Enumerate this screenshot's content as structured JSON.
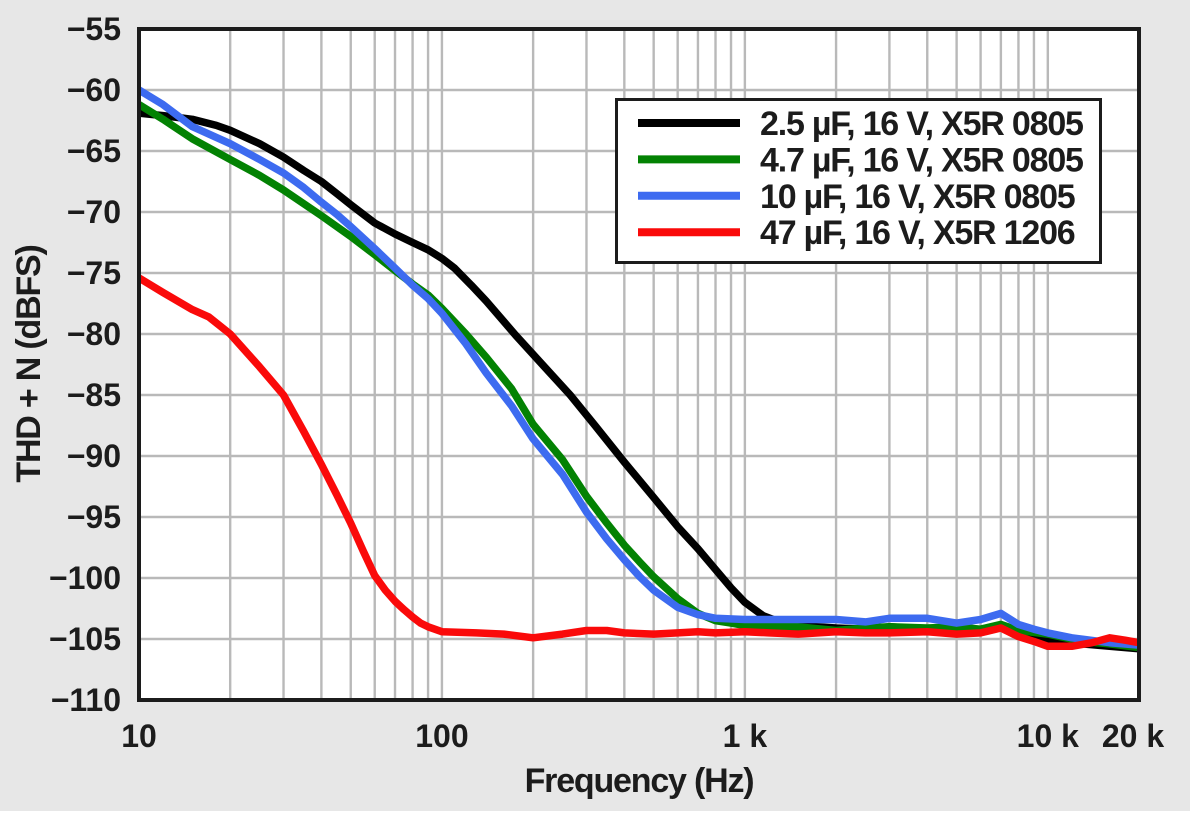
{
  "chart_data": {
    "type": "line",
    "title": "",
    "xlabel": "Frequency (Hz)",
    "ylabel": "THD + N (dBFS)",
    "x_scale": "log",
    "xlim": [
      10,
      20000
    ],
    "ylim": [
      -110,
      -55
    ],
    "grid": true,
    "legend_position": "top-right",
    "y_ticks": [
      {
        "value": -55,
        "label": "−55"
      },
      {
        "value": -60,
        "label": "−60"
      },
      {
        "value": -65,
        "label": "−65"
      },
      {
        "value": -70,
        "label": "−70"
      },
      {
        "value": -75,
        "label": "−75"
      },
      {
        "value": -80,
        "label": "−80"
      },
      {
        "value": -85,
        "label": "−85"
      },
      {
        "value": -90,
        "label": "−90"
      },
      {
        "value": -95,
        "label": "−95"
      },
      {
        "value": -100,
        "label": "−100"
      },
      {
        "value": -105,
        "label": "−105"
      },
      {
        "value": -110,
        "label": "−110"
      }
    ],
    "x_ticks": [
      {
        "value": 10,
        "label": "10"
      },
      {
        "value": 100,
        "label": "100"
      },
      {
        "value": 1000,
        "label": "1 k"
      },
      {
        "value": 10000,
        "label": "10 k"
      },
      {
        "value": 20000,
        "label": "20 k"
      }
    ],
    "series": [
      {
        "name": "2.5 µF, 16 V, X5R 0805",
        "color": "#000000",
        "points": [
          [
            10,
            -61.9
          ],
          [
            12,
            -62.1
          ],
          [
            15,
            -62.4
          ],
          [
            18,
            -62.9
          ],
          [
            20,
            -63.3
          ],
          [
            25,
            -64.4
          ],
          [
            30,
            -65.5
          ],
          [
            35,
            -66.6
          ],
          [
            40,
            -67.5
          ],
          [
            45,
            -68.5
          ],
          [
            50,
            -69.4
          ],
          [
            60,
            -70.9
          ],
          [
            70,
            -71.8
          ],
          [
            80,
            -72.5
          ],
          [
            90,
            -73.1
          ],
          [
            100,
            -73.8
          ],
          [
            110,
            -74.6
          ],
          [
            125,
            -76.0
          ],
          [
            140,
            -77.3
          ],
          [
            175,
            -80.1
          ],
          [
            220,
            -82.8
          ],
          [
            265,
            -85.0
          ],
          [
            320,
            -87.5
          ],
          [
            400,
            -90.5
          ],
          [
            500,
            -93.4
          ],
          [
            600,
            -95.8
          ],
          [
            700,
            -97.6
          ],
          [
            800,
            -99.3
          ],
          [
            900,
            -100.8
          ],
          [
            1000,
            -102.0
          ],
          [
            1150,
            -103.1
          ],
          [
            1300,
            -103.6
          ],
          [
            1500,
            -103.9
          ],
          [
            2000,
            -104.1
          ],
          [
            2500,
            -104.2
          ],
          [
            3000,
            -104.0
          ],
          [
            4000,
            -104.2
          ],
          [
            5000,
            -104.0
          ],
          [
            6000,
            -104.3
          ],
          [
            7000,
            -104.0
          ],
          [
            8000,
            -104.7
          ],
          [
            10000,
            -105.1
          ],
          [
            13000,
            -105.4
          ],
          [
            16000,
            -105.6
          ],
          [
            20000,
            -105.8
          ]
        ]
      },
      {
        "name": "4.7 µF, 16 V, X5R 0805",
        "color": "#038203",
        "points": [
          [
            10,
            -61.2
          ],
          [
            12,
            -62.4
          ],
          [
            15,
            -64.0
          ],
          [
            20,
            -65.7
          ],
          [
            25,
            -67.0
          ],
          [
            30,
            -68.2
          ],
          [
            40,
            -70.3
          ],
          [
            50,
            -72.0
          ],
          [
            60,
            -73.5
          ],
          [
            70,
            -74.8
          ],
          [
            80,
            -75.9
          ],
          [
            90,
            -76.8
          ],
          [
            100,
            -77.9
          ],
          [
            120,
            -80.0
          ],
          [
            140,
            -81.9
          ],
          [
            170,
            -84.5
          ],
          [
            200,
            -87.4
          ],
          [
            250,
            -90.3
          ],
          [
            300,
            -93.3
          ],
          [
            350,
            -95.5
          ],
          [
            400,
            -97.3
          ],
          [
            450,
            -98.7
          ],
          [
            500,
            -99.9
          ],
          [
            600,
            -101.7
          ],
          [
            700,
            -102.9
          ],
          [
            800,
            -103.5
          ],
          [
            900,
            -103.7
          ],
          [
            1000,
            -103.9
          ],
          [
            1200,
            -104.0
          ],
          [
            1500,
            -104.0
          ],
          [
            2000,
            -104.3
          ],
          [
            2500,
            -104.1
          ],
          [
            3000,
            -104.0
          ],
          [
            4000,
            -104.1
          ],
          [
            5000,
            -104.0
          ],
          [
            6000,
            -104.2
          ],
          [
            7000,
            -103.8
          ],
          [
            8000,
            -104.3
          ],
          [
            10000,
            -104.6
          ],
          [
            13000,
            -105.2
          ],
          [
            16000,
            -105.4
          ],
          [
            20000,
            -105.7
          ]
        ]
      },
      {
        "name": "10 µF, 16 V, X5R 0805",
        "color": "#3d6bf0",
        "points": [
          [
            10,
            -60.0
          ],
          [
            12,
            -61.2
          ],
          [
            15,
            -63.0
          ],
          [
            20,
            -64.4
          ],
          [
            25,
            -65.7
          ],
          [
            30,
            -66.8
          ],
          [
            35,
            -68.0
          ],
          [
            40,
            -69.2
          ],
          [
            45,
            -70.2
          ],
          [
            50,
            -71.2
          ],
          [
            60,
            -73.0
          ],
          [
            70,
            -74.6
          ],
          [
            80,
            -76.0
          ],
          [
            90,
            -77.1
          ],
          [
            100,
            -78.3
          ],
          [
            120,
            -80.8
          ],
          [
            140,
            -83.2
          ],
          [
            170,
            -85.9
          ],
          [
            200,
            -88.6
          ],
          [
            250,
            -91.5
          ],
          [
            300,
            -94.6
          ],
          [
            350,
            -96.8
          ],
          [
            400,
            -98.5
          ],
          [
            450,
            -99.9
          ],
          [
            500,
            -101.0
          ],
          [
            600,
            -102.4
          ],
          [
            700,
            -103.0
          ],
          [
            800,
            -103.3
          ],
          [
            1000,
            -103.4
          ],
          [
            1200,
            -103.4
          ],
          [
            1500,
            -103.4
          ],
          [
            2000,
            -103.4
          ],
          [
            2500,
            -103.6
          ],
          [
            3000,
            -103.3
          ],
          [
            4000,
            -103.3
          ],
          [
            5000,
            -103.7
          ],
          [
            6000,
            -103.4
          ],
          [
            7000,
            -102.9
          ],
          [
            8000,
            -103.8
          ],
          [
            9000,
            -104.2
          ],
          [
            10000,
            -104.5
          ],
          [
            12000,
            -104.9
          ],
          [
            16000,
            -105.3
          ],
          [
            20000,
            -105.5
          ]
        ]
      },
      {
        "name": "47 µF, 16 V, X5R 1206",
        "color": "#fa0a0a",
        "points": [
          [
            10,
            -75.4
          ],
          [
            12,
            -76.6
          ],
          [
            15,
            -78.0
          ],
          [
            17,
            -78.6
          ],
          [
            20,
            -80.0
          ],
          [
            25,
            -82.7
          ],
          [
            30,
            -85.0
          ],
          [
            35,
            -88.0
          ],
          [
            40,
            -90.7
          ],
          [
            45,
            -93.2
          ],
          [
            50,
            -95.5
          ],
          [
            55,
            -97.8
          ],
          [
            60,
            -99.8
          ],
          [
            65,
            -101.0
          ],
          [
            70,
            -101.9
          ],
          [
            75,
            -102.6
          ],
          [
            80,
            -103.2
          ],
          [
            85,
            -103.7
          ],
          [
            90,
            -104.0
          ],
          [
            100,
            -104.4
          ],
          [
            130,
            -104.5
          ],
          [
            160,
            -104.6
          ],
          [
            200,
            -104.9
          ],
          [
            250,
            -104.6
          ],
          [
            300,
            -104.3
          ],
          [
            350,
            -104.3
          ],
          [
            400,
            -104.5
          ],
          [
            500,
            -104.6
          ],
          [
            600,
            -104.5
          ],
          [
            700,
            -104.4
          ],
          [
            800,
            -104.5
          ],
          [
            1000,
            -104.4
          ],
          [
            1200,
            -104.5
          ],
          [
            1500,
            -104.6
          ],
          [
            2000,
            -104.4
          ],
          [
            2500,
            -104.5
          ],
          [
            3000,
            -104.5
          ],
          [
            4000,
            -104.4
          ],
          [
            5000,
            -104.6
          ],
          [
            6000,
            -104.5
          ],
          [
            7000,
            -104.1
          ],
          [
            8000,
            -104.8
          ],
          [
            9000,
            -105.2
          ],
          [
            10000,
            -105.6
          ],
          [
            12000,
            -105.6
          ],
          [
            14000,
            -105.3
          ],
          [
            16000,
            -104.9
          ],
          [
            18000,
            -105.1
          ],
          [
            20000,
            -105.3
          ]
        ]
      }
    ]
  },
  "colors": {
    "background": "#e7e7e7",
    "plot_background": "#ffffff",
    "grid": "#b9b9b9",
    "axis": "#1c1c1c",
    "text": "#1c1c1c",
    "legend_background": "#ffffff"
  }
}
